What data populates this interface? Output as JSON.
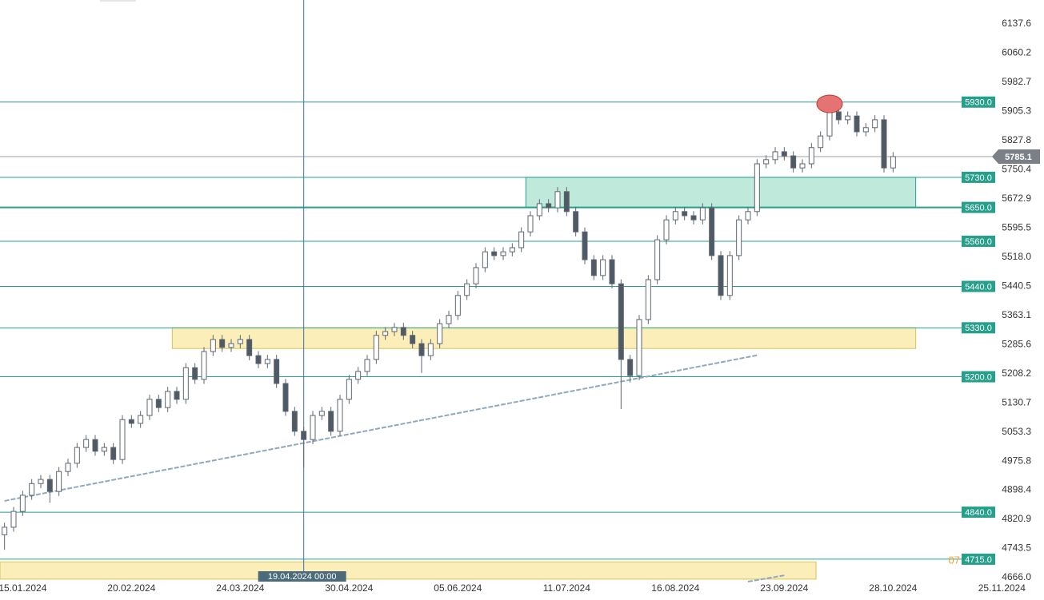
{
  "chart_data": {
    "type": "candlestick",
    "categories": [
      null,
      null,
      "15.01.2024",
      null,
      null,
      null,
      null,
      null,
      null,
      null,
      null,
      null,
      null,
      null,
      "20.02.2024",
      null,
      null,
      null,
      null,
      null,
      null,
      null,
      null,
      null,
      null,
      null,
      "24.03.2024",
      null,
      null,
      null,
      null,
      null,
      null,
      null,
      null,
      null,
      null,
      null,
      "30.04.2024",
      null,
      null,
      null,
      null,
      null,
      null,
      null,
      null,
      null,
      null,
      null,
      "05.06.2024",
      null,
      null,
      null,
      null,
      null,
      null,
      null,
      null,
      null,
      null,
      null,
      "11.07.2024",
      null,
      null,
      null,
      null,
      null,
      null,
      null,
      null,
      null,
      null,
      null,
      "16.08.2024",
      null,
      null,
      null,
      null,
      null,
      null,
      null,
      null,
      null,
      null,
      null,
      "23.09.2024",
      null,
      null,
      null,
      null,
      null,
      null,
      null,
      null,
      null,
      null,
      null,
      "28.10.2024",
      null,
      null,
      null,
      null,
      null,
      null,
      null,
      null,
      null,
      null,
      null,
      "25.11.2024"
    ],
    "open": [
      4780,
      4800,
      4842,
      4885,
      4916,
      4927,
      4895,
      4948,
      4970,
      5012,
      5033,
      5002,
      5012,
      4980,
      5086,
      5076,
      5097,
      5140,
      5118,
      5161,
      5140,
      5224,
      5193,
      5267,
      5299,
      5278,
      5288,
      5299,
      5256,
      5235,
      5246,
      5182,
      5108,
      5055,
      5033,
      5097,
      5108,
      5055,
      5140,
      5193,
      5214,
      5246,
      5310,
      5320,
      5331,
      5310,
      5288,
      5256,
      5288,
      5341,
      5363,
      5416,
      5447,
      5490,
      5532,
      5522,
      5532,
      5543,
      5585,
      5628,
      5660,
      5649,
      5692,
      5639,
      5585,
      5511,
      5469,
      5511,
      5447,
      5246,
      5203,
      5352,
      5458,
      5564,
      5617,
      5639,
      5628,
      5617,
      5649,
      5522,
      5416,
      5522,
      5617,
      5639,
      5766,
      5777,
      5798,
      5787,
      5755,
      5766,
      5809,
      5840,
      5904,
      5883,
      5893,
      5851,
      5862,
      5883,
      5755,
      null,
      null,
      null,
      null,
      null,
      null,
      null,
      null,
      null,
      null,
      null,
      null
    ],
    "high": [
      4812,
      4854,
      4897,
      4928,
      4939,
      4939,
      4960,
      4982,
      5024,
      5045,
      5045,
      5024,
      5024,
      5098,
      5098,
      5109,
      5152,
      5152,
      5173,
      5173,
      5236,
      5236,
      5279,
      5311,
      5311,
      5300,
      5311,
      5311,
      5268,
      5258,
      5258,
      5194,
      5120,
      5067,
      5109,
      5120,
      5120,
      5152,
      5205,
      5226,
      5258,
      5322,
      5332,
      5343,
      5343,
      5322,
      5300,
      5300,
      5353,
      5375,
      5428,
      5459,
      5502,
      5544,
      5544,
      5544,
      5555,
      5597,
      5640,
      5672,
      5672,
      5704,
      5704,
      5651,
      5597,
      5523,
      5523,
      5523,
      5459,
      5258,
      5364,
      5470,
      5576,
      5629,
      5651,
      5651,
      5640,
      5661,
      5661,
      5534,
      5534,
      5629,
      5651,
      5778,
      5789,
      5810,
      5810,
      5799,
      5778,
      5821,
      5852,
      5916,
      5916,
      5905,
      5905,
      5874,
      5895,
      5895,
      5797,
      null,
      null,
      null,
      null,
      null,
      null,
      null,
      null,
      null,
      null,
      null,
      null
    ],
    "low": [
      4740,
      4788,
      4830,
      4873,
      4904,
      4865,
      4883,
      4936,
      4958,
      5000,
      4990,
      4990,
      4968,
      4968,
      5064,
      5064,
      5085,
      5106,
      5106,
      5128,
      5128,
      5181,
      5181,
      5255,
      5266,
      5266,
      5276,
      5244,
      5223,
      5223,
      5170,
      5096,
      5043,
      4959,
      5021,
      5085,
      5043,
      5043,
      5128,
      5181,
      5202,
      5234,
      5298,
      5308,
      5298,
      5276,
      5210,
      5244,
      5276,
      5329,
      5351,
      5404,
      5435,
      5478,
      5510,
      5510,
      5520,
      5531,
      5573,
      5616,
      5637,
      5637,
      5627,
      5573,
      5499,
      5457,
      5457,
      5435,
      5114,
      5185,
      5191,
      5340,
      5446,
      5552,
      5605,
      5616,
      5605,
      5605,
      5510,
      5404,
      5404,
      5510,
      5605,
      5627,
      5754,
      5765,
      5775,
      5743,
      5743,
      5754,
      5797,
      5828,
      5871,
      5871,
      5839,
      5839,
      5850,
      5743,
      5743,
      null,
      null,
      null,
      null,
      null,
      null,
      null,
      null,
      null,
      null,
      null,
      null
    ],
    "close": [
      4800,
      4842,
      4885,
      4916,
      4927,
      4895,
      4948,
      4970,
      5012,
      5033,
      5002,
      5012,
      4980,
      5086,
      5076,
      5097,
      5140,
      5118,
      5161,
      5140,
      5224,
      5193,
      5267,
      5299,
      5278,
      5288,
      5299,
      5256,
      5235,
      5246,
      5182,
      5108,
      5055,
      5033,
      5097,
      5108,
      5055,
      5140,
      5193,
      5214,
      5246,
      5310,
      5320,
      5331,
      5310,
      5288,
      5256,
      5288,
      5341,
      5363,
      5416,
      5447,
      5490,
      5532,
      5522,
      5532,
      5543,
      5585,
      5628,
      5660,
      5649,
      5692,
      5639,
      5585,
      5511,
      5469,
      5511,
      5447,
      5246,
      5203,
      5352,
      5458,
      5564,
      5617,
      5639,
      5628,
      5617,
      5649,
      5522,
      5416,
      5522,
      5617,
      5639,
      5766,
      5777,
      5798,
      5787,
      5755,
      5766,
      5809,
      5840,
      5904,
      5883,
      5893,
      5851,
      5862,
      5883,
      5755,
      5785.1,
      null,
      null,
      null,
      null,
      null,
      null,
      null,
      null,
      null,
      null,
      null,
      null
    ],
    "up_color": "#ffffff",
    "down_color": "#4f5a64",
    "wick_color": "#5d6670",
    "ylim": [
      4655.4,
      6201.3
    ],
    "yticks": [
      {
        "value": 6137.6,
        "label": "6137.6"
      },
      {
        "value": 6060.2,
        "label": "6060.2"
      },
      {
        "value": 5982.7,
        "label": "5982.7"
      },
      {
        "value": 5905.3,
        "label": "5905.3"
      },
      {
        "value": 5827.8,
        "label": "5827.8"
      },
      {
        "value": 5750.4,
        "label": "5750.4"
      },
      {
        "value": 5672.9,
        "label": "5672.9"
      },
      {
        "value": 5595.5,
        "label": "5595.5"
      },
      {
        "value": 5518,
        "label": "5518.0"
      },
      {
        "value": 5440.5,
        "label": "5440.5"
      },
      {
        "value": 5363.1,
        "label": "5363.1"
      },
      {
        "value": 5285.6,
        "label": "5285.6"
      },
      {
        "value": 5208.2,
        "label": "5208.2"
      },
      {
        "value": 5130.7,
        "label": "5130.7"
      },
      {
        "value": 5053.3,
        "label": "5053.3"
      },
      {
        "value": 4975.8,
        "label": "4975.8"
      },
      {
        "value": 4898.4,
        "label": "4898.4"
      },
      {
        "value": 4820.9,
        "label": "4820.9"
      },
      {
        "value": 4743.5,
        "label": "4743.5"
      },
      {
        "value": 4666,
        "label": "4666.0"
      }
    ],
    "levels": {
      "values": [
        5930,
        5730,
        5650,
        5560,
        5440,
        5330,
        5200,
        4840,
        4715
      ],
      "value_labels": [
        "5930.0",
        "5730.0",
        "5650.0",
        "5560.0",
        "5440.0",
        "5330.0",
        "5200.0",
        "4840.0",
        "4715.0"
      ],
      "color": "#26a08a"
    },
    "last_price": {
      "value": 5785.1,
      "label": "5785.1",
      "color": "#7b7f88"
    },
    "zones": [
      {
        "top": 5730,
        "bottom": 5650,
        "start": 58,
        "end": 101,
        "color": "#bfe9da",
        "border": "#26a08a"
      },
      {
        "top": 5330,
        "bottom": 5275,
        "start": 19,
        "end": 101,
        "color": "#fbeeb8",
        "border": "#d8c25a"
      },
      {
        "top": 4708,
        "bottom": 4662,
        "start": 0,
        "end": 90,
        "color": "#fbeeb8",
        "border": "#d8c25a"
      }
    ],
    "trendlines": [
      {
        "x": [
          0,
          83
        ],
        "values": [
          4870,
          5257
        ],
        "color": "#8fa8c0"
      },
      {
        "x": [
          82,
          86
        ],
        "values": [
          4655.4,
          4672
        ],
        "color": "#8fa8c0"
      }
    ],
    "crosshair": {
      "index": 33,
      "label": "19.04.2024 00:00"
    },
    "stray_label": "07"
  }
}
